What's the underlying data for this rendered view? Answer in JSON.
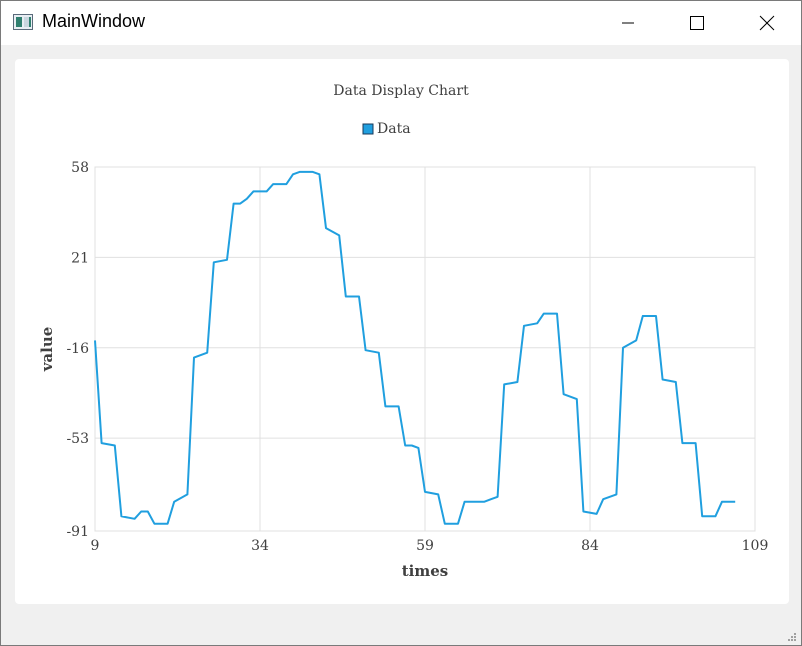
{
  "window": {
    "title": "MainWindow",
    "icons": {
      "app": "app-window-icon",
      "minimize": "minimize-icon",
      "maximize": "maximize-icon",
      "close": "close-icon",
      "grip": "resize-grip-icon"
    }
  },
  "chart_data": {
    "type": "line",
    "title": "Data Display Chart",
    "xlabel": "times",
    "ylabel": "value",
    "xlim": [
      9,
      109
    ],
    "ylim": [
      -91,
      58
    ],
    "xticks": [
      "9",
      "34",
      "59",
      "84",
      "109"
    ],
    "yticks": [
      "58",
      "21",
      "-16",
      "-53",
      "-91"
    ],
    "grid": true,
    "legend_position": "top-center",
    "series": [
      {
        "name": "Data",
        "color": "#209fdf",
        "points": [
          [
            9,
            -13
          ],
          [
            10,
            -55
          ],
          [
            12,
            -56
          ],
          [
            13,
            -85
          ],
          [
            15,
            -86
          ],
          [
            16,
            -83
          ],
          [
            17,
            -83
          ],
          [
            18,
            -88
          ],
          [
            20,
            -88
          ],
          [
            21,
            -79
          ],
          [
            23,
            -76
          ],
          [
            24,
            -20
          ],
          [
            26,
            -18
          ],
          [
            27,
            19
          ],
          [
            29,
            20
          ],
          [
            30,
            43
          ],
          [
            31,
            43
          ],
          [
            32,
            45
          ],
          [
            33,
            48
          ],
          [
            35,
            48
          ],
          [
            36,
            51
          ],
          [
            38,
            51
          ],
          [
            39,
            55
          ],
          [
            40,
            56
          ],
          [
            42,
            56
          ],
          [
            43,
            55
          ],
          [
            44,
            33
          ],
          [
            46,
            30
          ],
          [
            47,
            5
          ],
          [
            49,
            5
          ],
          [
            50,
            -17
          ],
          [
            52,
            -18
          ],
          [
            53,
            -40
          ],
          [
            55,
            -40
          ],
          [
            56,
            -56
          ],
          [
            57,
            -56
          ],
          [
            58,
            -57
          ],
          [
            59,
            -75
          ],
          [
            61,
            -76
          ],
          [
            62,
            -88
          ],
          [
            64,
            -88
          ],
          [
            65,
            -79
          ],
          [
            67,
            -79
          ],
          [
            68,
            -79
          ],
          [
            69,
            -78
          ],
          [
            70,
            -77
          ],
          [
            71,
            -31
          ],
          [
            73,
            -30
          ],
          [
            74,
            -7
          ],
          [
            76,
            -6
          ],
          [
            77,
            -2
          ],
          [
            79,
            -2
          ],
          [
            80,
            -35
          ],
          [
            82,
            -37
          ],
          [
            83,
            -83
          ],
          [
            85,
            -84
          ],
          [
            86,
            -78
          ],
          [
            88,
            -76
          ],
          [
            89,
            -16
          ],
          [
            91,
            -13
          ],
          [
            92,
            -3
          ],
          [
            94,
            -3
          ],
          [
            95,
            -29
          ],
          [
            97,
            -30
          ],
          [
            98,
            -55
          ],
          [
            100,
            -55
          ],
          [
            101,
            -85
          ],
          [
            103,
            -85
          ],
          [
            104,
            -79
          ],
          [
            106,
            -79
          ]
        ]
      }
    ]
  }
}
